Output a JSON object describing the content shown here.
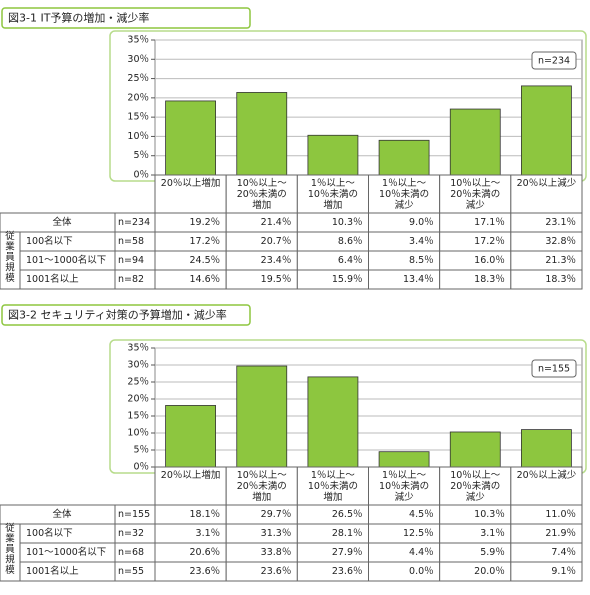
{
  "chart_data": [
    {
      "type": "bar",
      "title": "図3-1 IT予算の増加・減少率",
      "color": "#8dc63f",
      "grid": true,
      "ylim": [
        0,
        35
      ],
      "yticks": [
        {
          "value": 0,
          "label": "0％"
        },
        {
          "value": 5,
          "label": "5％"
        },
        {
          "value": 10,
          "label": "10％"
        },
        {
          "value": 15,
          "label": "15％"
        },
        {
          "value": 20,
          "label": "20％"
        },
        {
          "value": 25,
          "label": "25％"
        },
        {
          "value": 30,
          "label": "30％"
        },
        {
          "value": 35,
          "label": "35％"
        }
      ],
      "categories": [
        "20％以上増加",
        "10％以上～\n20％未満の\n増加",
        "1％以上～\n10％未満の\n増加",
        "1％以上～\n10％未満の\n減少",
        "10％以上～\n20％未満の\n減少",
        "20％以上減少"
      ],
      "group_label": "従業員規模",
      "series": [
        {
          "name": "全体",
          "n": "n=234",
          "values": [
            19.2,
            21.4,
            10.3,
            9.0,
            17.1,
            23.1
          ],
          "value_labels": [
            "19.2％",
            "21.4％",
            "10.3％",
            "9.0％",
            "17.1％",
            "23.1％"
          ]
        },
        {
          "name": "100名以下",
          "n": "n=58",
          "values": [
            17.2,
            20.7,
            8.6,
            3.4,
            17.2,
            32.8
          ],
          "value_labels": [
            "17.2％",
            "20.7％",
            "8.6％",
            "3.4％",
            "17.2％",
            "32.8％"
          ]
        },
        {
          "name": "101～1000名以下",
          "n": "n=94",
          "values": [
            24.5,
            23.4,
            6.4,
            8.5,
            16.0,
            21.3
          ],
          "value_labels": [
            "24.5％",
            "23.4％",
            "6.4％",
            "8.5％",
            "16.0％",
            "21.3％"
          ]
        },
        {
          "name": "1001名以上",
          "n": "n=82",
          "values": [
            14.6,
            19.5,
            15.9,
            13.4,
            18.3,
            18.3
          ],
          "value_labels": [
            "14.6％",
            "19.5％",
            "15.9％",
            "13.4％",
            "18.3％",
            "18.3％"
          ]
        }
      ]
    },
    {
      "type": "bar",
      "title": "図3-2 セキュリティ対策の予算増加・減少率",
      "color": "#8dc63f",
      "grid": true,
      "ylim": [
        0,
        35
      ],
      "yticks": [
        {
          "value": 0,
          "label": "0％"
        },
        {
          "value": 5,
          "label": "5％"
        },
        {
          "value": 10,
          "label": "10％"
        },
        {
          "value": 15,
          "label": "15％"
        },
        {
          "value": 20,
          "label": "20％"
        },
        {
          "value": 25,
          "label": "25％"
        },
        {
          "value": 30,
          "label": "30％"
        },
        {
          "value": 35,
          "label": "35％"
        }
      ],
      "categories": [
        "20％以上増加",
        "10％以上～\n20％未満の\n増加",
        "1％以上～\n10％未満の\n増加",
        "1％以上～\n10％未満の\n減少",
        "10％以上～\n20％未満の\n減少",
        "20％以上減少"
      ],
      "group_label": "従業員規模",
      "series": [
        {
          "name": "全体",
          "n": "n=155",
          "values": [
            18.1,
            29.7,
            26.5,
            4.5,
            10.3,
            11.0
          ],
          "value_labels": [
            "18.1％",
            "29.7％",
            "26.5％",
            "4.5％",
            "10.3％",
            "11.0％"
          ]
        },
        {
          "name": "100名以下",
          "n": "n=32",
          "values": [
            3.1,
            31.3,
            28.1,
            12.5,
            3.1,
            21.9
          ],
          "value_labels": [
            "3.1％",
            "31.3％",
            "28.1％",
            "12.5％",
            "3.1％",
            "21.9％"
          ]
        },
        {
          "name": "101～1000名以下",
          "n": "n=68",
          "values": [
            20.6,
            33.8,
            27.9,
            4.4,
            5.9,
            7.4
          ],
          "value_labels": [
            "20.6％",
            "33.8％",
            "27.9％",
            "4.4％",
            "5.9％",
            "7.4％"
          ]
        },
        {
          "name": "1001名以上",
          "n": "n=55",
          "values": [
            23.6,
            23.6,
            23.6,
            0.0,
            20.0,
            9.1
          ],
          "value_labels": [
            "23.6％",
            "23.6％",
            "23.6％",
            "0.0％",
            "20.0％",
            "9.1％"
          ]
        }
      ]
    }
  ]
}
